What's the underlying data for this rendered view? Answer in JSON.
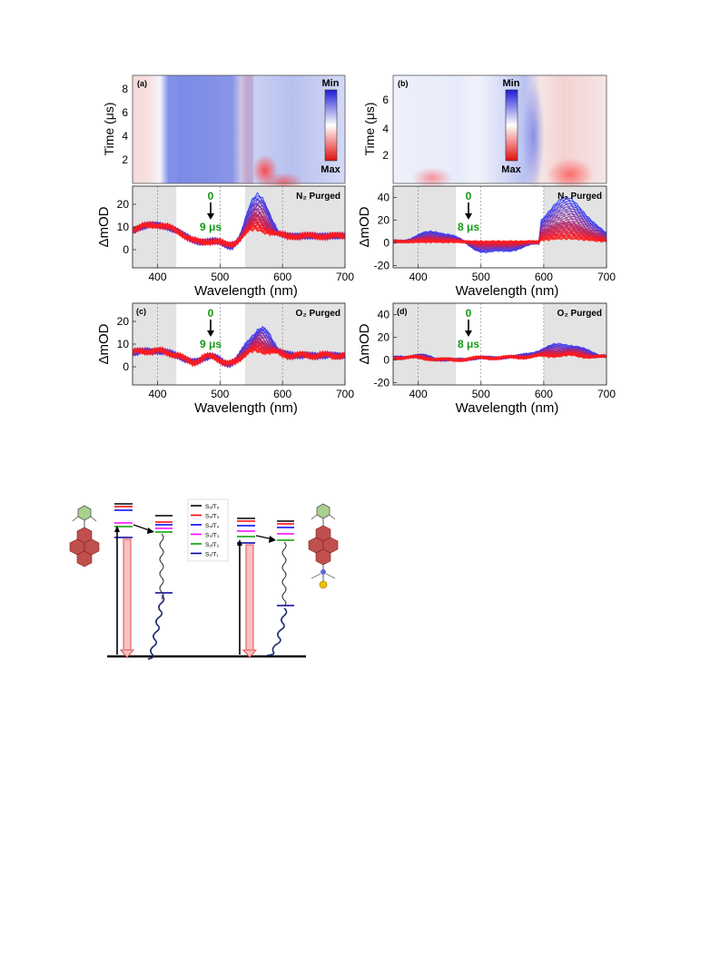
{
  "panels": [
    {
      "id": "a",
      "heatmap": {
        "label": "(a)",
        "ylabel": "Time (μs)",
        "yticks": [
          "2",
          "4",
          "6",
          "8"
        ],
        "ylim": [
          0.2,
          9.2
        ],
        "colorbar_min": "Min",
        "colorbar_max": "Max"
      },
      "spectra": {
        "ylabel": "ΔmOD",
        "yticks": [
          "0",
          "10",
          "20"
        ],
        "ylim": [
          -8,
          28
        ],
        "legend": "N₂ Purged",
        "time_start": "0",
        "time_end": "9 μs",
        "xlabel": "Wavelength (nm)",
        "xticks": [
          "400",
          "500",
          "600",
          "700"
        ]
      }
    },
    {
      "id": "b",
      "heatmap": {
        "label": "(b)",
        "ylabel": "Time (μs)",
        "yticks": [
          "2",
          "4",
          "6"
        ],
        "ylim": [
          0.2,
          7.8
        ],
        "colorbar_min": "Min",
        "colorbar_max": "Max"
      },
      "spectra": {
        "ylabel": "ΔmOD",
        "yticks": [
          "-20",
          "0",
          "20",
          "40"
        ],
        "ylim": [
          -22,
          50
        ],
        "legend": "N₂ Purged",
        "time_start": "0",
        "time_end": "8 μs",
        "xlabel": "Wavelength (nm)",
        "xticks": [
          "400",
          "500",
          "600",
          "700"
        ]
      }
    },
    {
      "id": "c",
      "spectra": {
        "label": "(c)",
        "ylabel": "ΔmOD",
        "yticks": [
          "0",
          "10",
          "20"
        ],
        "ylim": [
          -8,
          28
        ],
        "legend": "O₂ Purged",
        "time_start": "0",
        "time_end": "9 μs",
        "xlabel": "Wavelength (nm)",
        "xticks": [
          "400",
          "500",
          "600",
          "700"
        ]
      }
    },
    {
      "id": "d",
      "spectra": {
        "label": "(d)",
        "ylabel": "ΔmOD",
        "yticks": [
          "-20",
          "0",
          "20",
          "40"
        ],
        "ylim": [
          -22,
          50
        ],
        "legend": "O₂ Purged",
        "time_start": "0",
        "time_end": "8 μs",
        "xlabel": "Wavelength (nm)",
        "xticks": [
          "400",
          "500",
          "600",
          "700"
        ]
      }
    }
  ],
  "energy_diagram": {
    "legend": [
      {
        "label": "S₆/T₆",
        "color": "#000000"
      },
      {
        "label": "S₅/T₅",
        "color": "#ff0000"
      },
      {
        "label": "S₄/T₄",
        "color": "#0000ff"
      },
      {
        "label": "S₃/T₃",
        "color": "#ff00ff"
      },
      {
        "label": "S₂/T₂",
        "color": "#00a000"
      },
      {
        "label": "S₁/T₁",
        "color": "#000099"
      }
    ]
  },
  "colors": {
    "early": "#2a3cff",
    "late": "#ff1a1a",
    "shade": "#e3e3e3",
    "time_label": "#139a13"
  }
}
